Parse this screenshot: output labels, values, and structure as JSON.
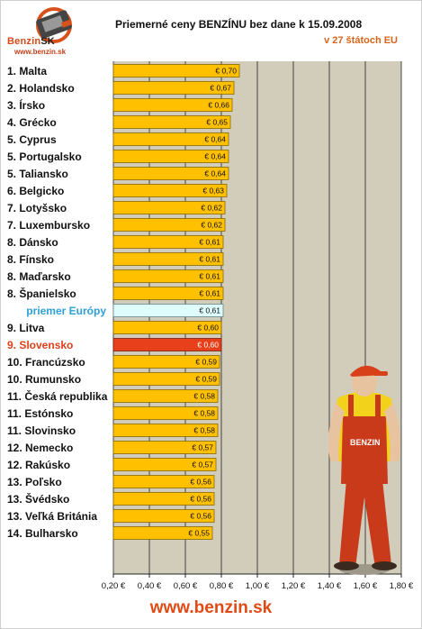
{
  "header": {
    "logo_name": "Benzin",
    "logo_sk": "SK",
    "logo_url": "www.benzin.sk",
    "title": "Priemerné ceny BENZÍNU bez dane k 15.09.2008",
    "subtitle": "v 27 štátoch EU"
  },
  "footer": {
    "url": "www.benzin.sk"
  },
  "colors": {
    "bar": "#ffc000",
    "bar_border": "#8a6a00",
    "avg_bar": "#ddfcfb",
    "highlight_bar": "#e8401a",
    "plot_bg": "#d2ccbb",
    "grid": "#222222"
  },
  "chart_data": {
    "type": "bar",
    "orientation": "horizontal",
    "title": "Priemerné ceny BENZÍNU bez dane k 15.09.2008",
    "subtitle": "v 27 štátoch EU",
    "xlim": [
      0.2,
      1.8
    ],
    "ticks": [
      0.2,
      0.4,
      0.6,
      0.8,
      1.0,
      1.2,
      1.4,
      1.6,
      1.8
    ],
    "tick_labels": [
      "0,20 €",
      "0,40 €",
      "0,60 €",
      "0,80 €",
      "1,00 €",
      "1,20 €",
      "1,40 €",
      "1,60 €",
      "1,80 €"
    ],
    "grid": true,
    "categories": [
      "1. Malta",
      "2. Holandsko",
      "3. Írsko",
      "4. Grécko",
      "5. Cyprus",
      "5. Portugalsko",
      "5. Taliansko",
      "6. Belgicko",
      "7. Lotyšsko",
      "7. Luxembursko",
      "8. Dánsko",
      "8. Fínsko",
      "8. Maďarsko",
      "8. Španielsko",
      "priemer Európy",
      "9. Litva",
      "9. Slovensko",
      "10. Francúzsko",
      "10. Rumunsko",
      "11. Česká republika",
      "11. Estónsko",
      "11. Slovinsko",
      "12. Nemecko",
      "12. Rakúsko",
      "13. Poľsko",
      "13. Švédsko",
      "13. Veľká Británia",
      "14. Bulharsko"
    ],
    "values": [
      0.7,
      0.67,
      0.66,
      0.65,
      0.64,
      0.64,
      0.64,
      0.63,
      0.62,
      0.62,
      0.61,
      0.61,
      0.61,
      0.61,
      0.61,
      0.6,
      0.6,
      0.59,
      0.59,
      0.58,
      0.58,
      0.58,
      0.57,
      0.57,
      0.56,
      0.56,
      0.56,
      0.55
    ],
    "value_labels": [
      "€ 0,70",
      "€ 0,67",
      "€ 0,66",
      "€ 0,65",
      "€ 0,64",
      "€ 0,64",
      "€ 0,64",
      "€ 0,63",
      "€ 0,62",
      "€ 0,62",
      "€ 0,61",
      "€ 0,61",
      "€ 0,61",
      "€ 0,61",
      "€ 0,61",
      "€ 0,60",
      "€ 0,60",
      "€ 0,59",
      "€ 0,59",
      "€ 0,58",
      "€ 0,58",
      "€ 0,58",
      "€ 0,57",
      "€ 0,57",
      "€ 0,56",
      "€ 0,56",
      "€ 0,56",
      "€ 0,55"
    ],
    "average_index": 14,
    "highlight_index": 16
  }
}
